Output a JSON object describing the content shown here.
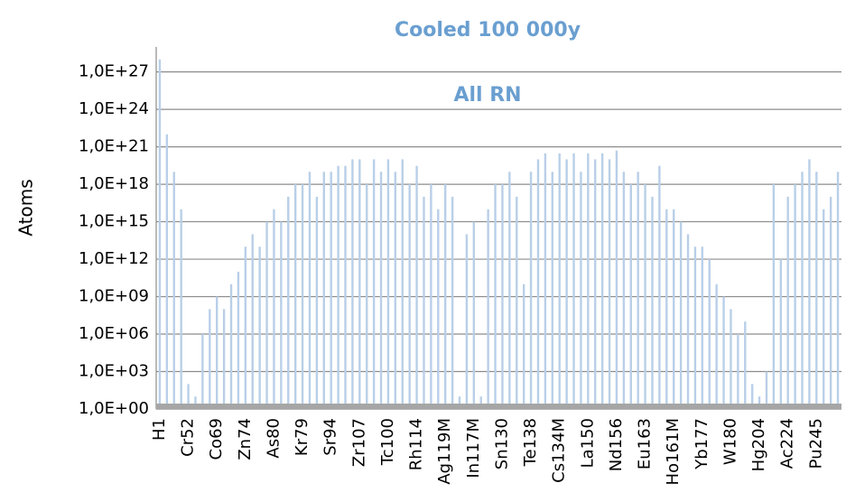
{
  "chart_data": {
    "type": "bar",
    "title": "Cooled 100 000y",
    "annotation": "All RN",
    "y_label": "Atoms",
    "log_scale": true,
    "grid": true,
    "color": "#b9cfe8",
    "title_color": "#6a9fd0",
    "ylim": [
      1,
      1e+29
    ],
    "yticks": [
      {
        "value": 1,
        "label": "1,0E+00"
      },
      {
        "value": 1000,
        "label": "1,0E+03"
      },
      {
        "value": 1000000,
        "label": "1,0E+06"
      },
      {
        "value": 1000000000,
        "label": "1,0E+09"
      },
      {
        "value": 1000000000000.0,
        "label": "1,0E+12"
      },
      {
        "value": 1000000000000000.0,
        "label": "1,0E+15"
      },
      {
        "value": 1e+18,
        "label": "1,0E+18"
      },
      {
        "value": 1e+21,
        "label": "1,0E+21"
      },
      {
        "value": 1e+24,
        "label": "1,0E+24"
      },
      {
        "value": 1e+27,
        "label": "1,0E+27"
      }
    ],
    "categories": [
      "H1",
      null,
      null,
      null,
      "Cr52",
      null,
      null,
      null,
      "Co69",
      null,
      null,
      null,
      "Zn74",
      null,
      null,
      null,
      "As80",
      null,
      null,
      null,
      "Kr79",
      null,
      null,
      null,
      "Sr94",
      null,
      null,
      null,
      "Zr107",
      null,
      null,
      null,
      "Tc100",
      null,
      null,
      null,
      "Rh114",
      null,
      null,
      null,
      "Ag119M",
      null,
      null,
      null,
      "In117M",
      null,
      null,
      null,
      "Sn130",
      null,
      null,
      null,
      "Te138",
      null,
      null,
      null,
      "Cs134M",
      null,
      null,
      null,
      "La150",
      null,
      null,
      null,
      "Nd156",
      null,
      null,
      null,
      "Eu163",
      null,
      null,
      null,
      "Ho161M",
      null,
      null,
      null,
      "Yb177",
      null,
      null,
      null,
      "W180",
      null,
      null,
      null,
      "Hg204",
      null,
      null,
      null,
      "Ac224",
      null,
      null,
      null,
      "Pu245",
      null,
      null,
      null
    ],
    "values": [
      1e+28,
      1e+22,
      1e+19,
      1e+16,
      100,
      10,
      1000000,
      100000000,
      1000000000,
      100000000,
      10000000000,
      100000000000,
      10000000000000.0,
      100000000000000.0,
      10000000000000.0,
      1000000000000000.0,
      1e+16,
      1000000000000000.0,
      1e+17,
      1e+18,
      1e+18,
      1e+19,
      1e+17,
      1e+19,
      1e+19,
      3e+19,
      3e+19,
      1e+20,
      1e+20,
      1e+18,
      1e+20,
      1e+19,
      1e+20,
      1e+19,
      1e+20,
      1e+18,
      3e+19,
      1e+17,
      1e+18,
      1e+16,
      1e+18,
      1e+17,
      10,
      100000000000000.0,
      1000000000000000.0,
      10,
      1e+16,
      1e+18,
      1e+18,
      1e+19,
      1e+17,
      10000000000,
      1e+19,
      1e+20,
      3e+20,
      1e+19,
      3e+20,
      1e+20,
      3e+20,
      1e+19,
      3e+20,
      1e+20,
      3e+20,
      1e+20,
      5e+20,
      1e+19,
      1e+18,
      1e+19,
      1e+18,
      1e+17,
      3e+19,
      1e+16,
      1e+16,
      1000000000000000.0,
      100000000000000.0,
      10000000000000.0,
      10000000000000.0,
      1000000000000.0,
      10000000000,
      1000000000,
      100000000,
      1000000,
      10000000,
      100,
      10,
      1000,
      1e+18,
      1000000000000.0,
      1e+17,
      1e+18,
      1e+19,
      1e+20,
      1e+19,
      1e+16,
      1e+17,
      1e+19
    ]
  }
}
